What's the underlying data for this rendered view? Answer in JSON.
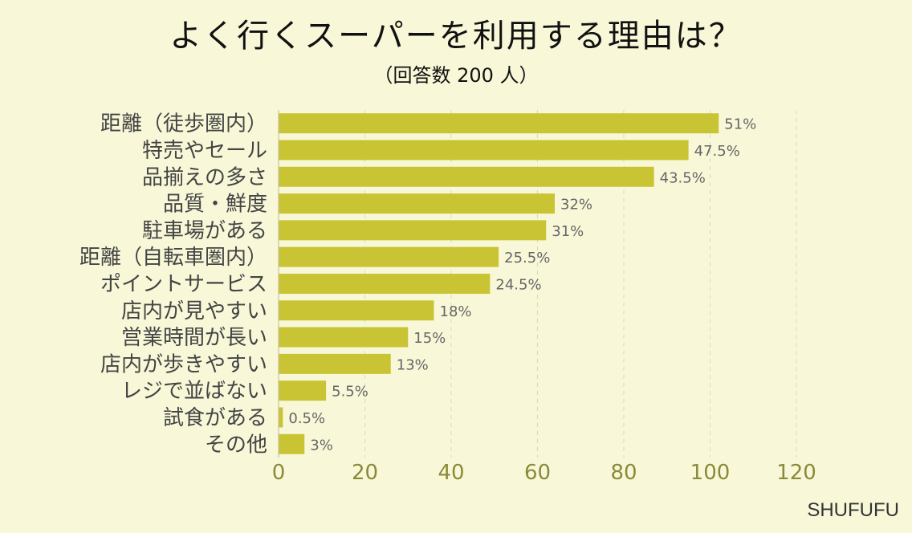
{
  "chart_data": {
    "type": "bar",
    "orientation": "horizontal",
    "title": "よく行くスーパーを利用する理由は？",
    "subtitle": "（回答数 200 人）",
    "categories": [
      "距離（徒歩圏内）",
      "特売やセール",
      "品揃えの多さ",
      "品質・鮮度",
      "駐車場がある",
      "距離（自転車圏内）",
      "ポイントサービス",
      "店内が見やすい",
      "営業時間が長い",
      "店内が歩きやすい",
      "レジで並ばない",
      "試食がある",
      "その他"
    ],
    "values": [
      102,
      95,
      87,
      64,
      62,
      51,
      49,
      36,
      30,
      26,
      11,
      1,
      6
    ],
    "value_labels": [
      "51%",
      "47.5%",
      "43.5%",
      "32%",
      "31%",
      "25.5%",
      "24.5%",
      "18%",
      "15%",
      "13%",
      "5.5%",
      "0.5%",
      "3%"
    ],
    "xlim": [
      0,
      120
    ],
    "xticks": [
      "0",
      "20",
      "40",
      "60",
      "80",
      "100",
      "120"
    ],
    "grid": "vertical-dashed",
    "bar_color": "#c9c434",
    "background": "#f8f8d9"
  },
  "brand": "SHUFUFU"
}
